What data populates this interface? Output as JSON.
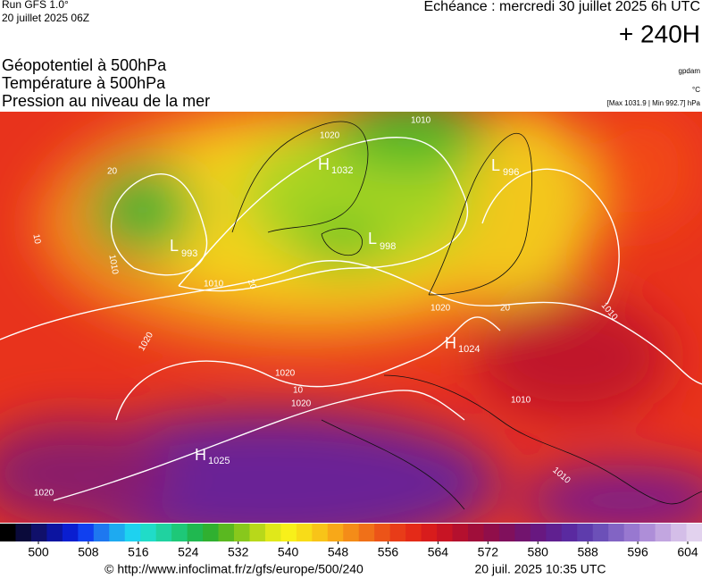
{
  "header": {
    "run": "Run GFS 1.0°",
    "run_date": "20 juillet 2025 06Z",
    "echeance": "Echéance : mercredi 30 juillet 2025 6h UTC",
    "lead": "+ 240H"
  },
  "layers": [
    "Géopotentiel à 500hPa",
    "Température à 500hPa",
    "Pression au niveau de la mer"
  ],
  "units": {
    "geopotential": "gpdam",
    "temperature": "°C",
    "pressure": "[Max 1031.9 | Min 992.7] hPa"
  },
  "centers": [
    {
      "letter": "H",
      "value": "1032"
    },
    {
      "letter": "L",
      "value": "993"
    },
    {
      "letter": "L",
      "value": "998"
    },
    {
      "letter": "L",
      "value": "996"
    },
    {
      "letter": "H",
      "value": "1024"
    },
    {
      "letter": "H",
      "value": "1025"
    }
  ],
  "contour_labels": [
    "1010",
    "1020",
    "1010",
    "1010",
    "1010",
    "1010",
    "1020",
    "1020",
    "1020",
    "1020",
    "1020",
    "20",
    "20",
    "10",
    "20",
    "10",
    "1010"
  ],
  "colorbar": {
    "ticks": [
      500,
      508,
      516,
      524,
      532,
      540,
      548,
      556,
      564,
      572,
      580,
      588,
      596,
      604
    ]
  },
  "footer": {
    "url": "© http://www.infoclimat.fr/z/gfs/europe/500/240",
    "timestamp": "20 juil. 2025 10:35 UTC"
  }
}
